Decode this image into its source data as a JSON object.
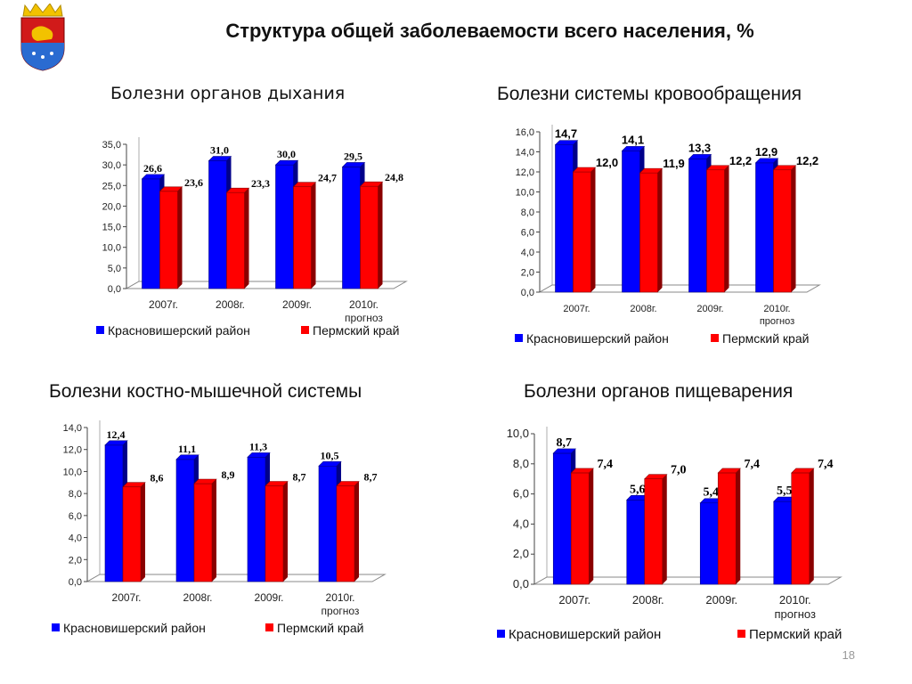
{
  "title": "Структура общей заболеваемости всего населения, %",
  "page_number": "18",
  "colors": {
    "district": "#0000ff",
    "district_dark": "#00008a",
    "region": "#ff0000",
    "region_dark": "#8a0000"
  },
  "chart_data": [
    {
      "type": "bar",
      "title": "Болезни органов дыхания",
      "categories": [
        "2007г.",
        "2008г.",
        "2009г.",
        "2010г. прогноз"
      ],
      "series": [
        {
          "name": "Красновишерский район",
          "values": [
            26.6,
            31.0,
            30.0,
            29.5
          ],
          "labels": [
            "26,6",
            "31,0",
            "30,0",
            "29,5"
          ]
        },
        {
          "name": "Пермский край",
          "values": [
            23.6,
            23.3,
            24.7,
            24.8
          ],
          "labels": [
            "23,6",
            "23,3",
            "24,7",
            "24,8"
          ]
        }
      ],
      "ylim": [
        0,
        35
      ],
      "ystep": 5,
      "yticks": [
        "0,0",
        "5,0",
        "10,0",
        "15,0",
        "20,0",
        "25,0",
        "30,0",
        "35,0"
      ],
      "legend": "bottom"
    },
    {
      "type": "bar",
      "title": "Болезни системы кровообращения",
      "categories": [
        "2007г.",
        "2008г.",
        "2009г.",
        "2010г. прогноз"
      ],
      "series": [
        {
          "name": "Красновишерский район",
          "values": [
            14.7,
            14.1,
            13.3,
            12.9
          ],
          "labels": [
            "14,7",
            "14,1",
            "13,3",
            "12,9"
          ]
        },
        {
          "name": "Пермский край",
          "values": [
            12.0,
            11.9,
            12.2,
            12.2
          ],
          "labels": [
            "12,0",
            "11,9",
            "12,2",
            "12,2"
          ]
        }
      ],
      "ylim": [
        0,
        16
      ],
      "ystep": 2,
      "yticks": [
        "0,0",
        "2,0",
        "4,0",
        "6,0",
        "8,0",
        "10,0",
        "12,0",
        "14,0",
        "16,0"
      ],
      "legend": "bottom"
    },
    {
      "type": "bar",
      "title": "Болезни костно-мышечной системы",
      "categories": [
        "2007г.",
        "2008г.",
        "2009г.",
        "2010г. прогноз"
      ],
      "series": [
        {
          "name": "Красновишерский район",
          "values": [
            12.4,
            11.1,
            11.3,
            10.5
          ],
          "labels": [
            "12,4",
            "11,1",
            "11,3",
            "10,5"
          ]
        },
        {
          "name": "Пермский край",
          "values": [
            8.6,
            8.9,
            8.7,
            8.7
          ],
          "labels": [
            "8,6",
            "8,9",
            "8,7",
            "8,7"
          ]
        }
      ],
      "ylim": [
        0,
        14
      ],
      "ystep": 2,
      "yticks": [
        "0,0",
        "2,0",
        "4,0",
        "6,0",
        "8,0",
        "10,0",
        "12,0",
        "14,0"
      ],
      "legend": "bottom"
    },
    {
      "type": "bar",
      "title": "Болезни органов пищеварения",
      "categories": [
        "2007г.",
        "2008г.",
        "2009г.",
        "2010г. прогноз"
      ],
      "series": [
        {
          "name": "Красновишерский район",
          "values": [
            8.7,
            5.6,
            5.4,
            5.5
          ],
          "labels": [
            "8,7",
            "5,6",
            "5,4",
            "5,5"
          ]
        },
        {
          "name": "Пермский край",
          "values": [
            7.4,
            7.0,
            7.4,
            7.4
          ],
          "labels": [
            "7,4",
            "7,0",
            "7,4",
            "7,4"
          ]
        }
      ],
      "ylim": [
        0,
        10
      ],
      "ystep": 2,
      "yticks": [
        "0,0",
        "2,0",
        "4,0",
        "6,0",
        "8,0",
        "10,0"
      ],
      "legend": "bottom"
    }
  ]
}
